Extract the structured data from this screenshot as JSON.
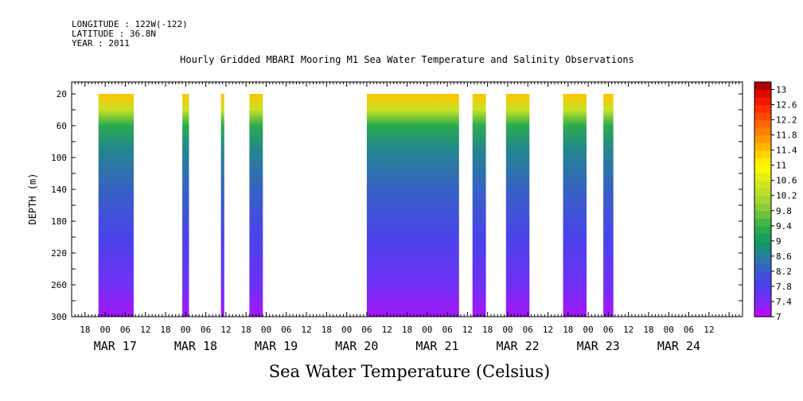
{
  "header": {
    "longitude": "LONGITUDE : 122W(-122)",
    "latitude": "LATITUDE : 36.8N",
    "year": "YEAR : 2011"
  },
  "chart_data": {
    "type": "heatmap",
    "title": "Hourly Gridded MBARI Mooring M1 Sea Water Temperature and Salinity Observations",
    "xlabel": "Sea Water Temperature (Celsius)",
    "ylabel": "DEPTH (m)",
    "x_range_hours": [
      -10,
      190
    ],
    "x_tick_hour_labels": [
      "18",
      "00",
      "06",
      "12",
      "18",
      "00",
      "06",
      "12",
      "18",
      "00",
      "06",
      "12",
      "18",
      "00",
      "06",
      "12",
      "18",
      "00",
      "06",
      "12",
      "18",
      "00",
      "06",
      "12",
      "18",
      "00",
      "06",
      "12",
      "18",
      "00",
      "06",
      "12"
    ],
    "x_day_labels": [
      "MAR 17",
      "MAR 18",
      "MAR 19",
      "MAR 20",
      "MAR 21",
      "MAR 22",
      "MAR 23",
      "MAR 24"
    ],
    "y_range": [
      5,
      300
    ],
    "y_ticks": [
      20,
      60,
      100,
      140,
      180,
      220,
      260,
      300
    ],
    "colorbar_ticks": [
      "13",
      "12.6",
      "12.2",
      "11.8",
      "11.4",
      "11",
      "10.6",
      "10.2",
      "9.8",
      "9.4",
      "9",
      "8.6",
      "8.2",
      "7.8",
      "7.4",
      "7"
    ],
    "colorbar_range": [
      7,
      13.2
    ],
    "data_segments_hours": [
      {
        "start": -2,
        "end": 8.5
      },
      {
        "start": 23,
        "end": 25
      },
      {
        "start": 34.5,
        "end": 35.5
      },
      {
        "start": 43,
        "end": 47
      },
      {
        "start": 78,
        "end": 105.5
      },
      {
        "start": 109.5,
        "end": 113.5
      },
      {
        "start": 119.5,
        "end": 126.5
      },
      {
        "start": 136.5,
        "end": 143.5
      },
      {
        "start": 148.5,
        "end": 151.5
      }
    ],
    "temperature_profile": [
      {
        "depth": 20,
        "temp": 11.4
      },
      {
        "depth": 40,
        "temp": 10.4
      },
      {
        "depth": 60,
        "temp": 9.3
      },
      {
        "depth": 90,
        "temp": 8.7
      },
      {
        "depth": 140,
        "temp": 8.3
      },
      {
        "depth": 200,
        "temp": 7.9
      },
      {
        "depth": 260,
        "temp": 7.5
      },
      {
        "depth": 300,
        "temp": 7.2
      }
    ]
  }
}
